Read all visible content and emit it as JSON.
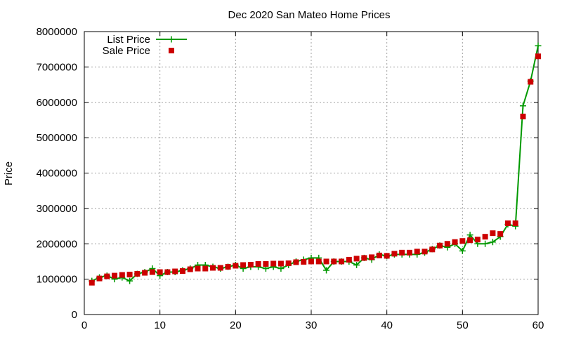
{
  "chart_data": {
    "type": "line",
    "title": "Dec 2020 San Mateo Home Prices",
    "xlabel": "",
    "ylabel": "Price",
    "xlim": [
      0,
      60
    ],
    "ylim": [
      0,
      8000000
    ],
    "x_ticks": [
      0,
      10,
      20,
      30,
      40,
      50,
      60
    ],
    "y_ticks": [
      0,
      1000000,
      2000000,
      3000000,
      4000000,
      5000000,
      6000000,
      7000000,
      8000000
    ],
    "grid": true,
    "legend_position": "top-left",
    "series": [
      {
        "name": "List Price",
        "style": "line+cross",
        "color": "#009900",
        "x": [
          1,
          2,
          3,
          4,
          5,
          6,
          7,
          8,
          9,
          10,
          11,
          12,
          13,
          14,
          15,
          16,
          17,
          18,
          19,
          20,
          21,
          22,
          23,
          24,
          25,
          26,
          27,
          28,
          29,
          30,
          31,
          32,
          33,
          34,
          35,
          36,
          37,
          38,
          39,
          40,
          41,
          42,
          43,
          44,
          45,
          46,
          47,
          48,
          49,
          50,
          51,
          52,
          53,
          54,
          55,
          56,
          57,
          58,
          59,
          60
        ],
        "values": [
          950000,
          1050000,
          1100000,
          1000000,
          1050000,
          950000,
          1150000,
          1200000,
          1300000,
          1100000,
          1200000,
          1200000,
          1250000,
          1300000,
          1400000,
          1400000,
          1350000,
          1300000,
          1350000,
          1400000,
          1300000,
          1350000,
          1350000,
          1300000,
          1350000,
          1300000,
          1400000,
          1500000,
          1550000,
          1600000,
          1600000,
          1250000,
          1500000,
          1500000,
          1500000,
          1400000,
          1600000,
          1550000,
          1700000,
          1650000,
          1700000,
          1700000,
          1700000,
          1700000,
          1750000,
          1850000,
          1950000,
          1900000,
          2000000,
          1800000,
          2250000,
          2000000,
          2000000,
          2050000,
          2200000,
          2550000,
          2500000,
          5900000,
          6600000,
          7600000
        ]
      },
      {
        "name": "Sale Price",
        "style": "square",
        "color": "#cc0000",
        "x": [
          1,
          2,
          3,
          4,
          5,
          6,
          7,
          8,
          9,
          10,
          11,
          12,
          13,
          14,
          15,
          16,
          17,
          18,
          19,
          20,
          21,
          22,
          23,
          24,
          25,
          26,
          27,
          28,
          29,
          30,
          31,
          32,
          33,
          34,
          35,
          36,
          37,
          38,
          39,
          40,
          41,
          42,
          43,
          44,
          45,
          46,
          47,
          48,
          49,
          50,
          51,
          52,
          53,
          54,
          55,
          56,
          57,
          58,
          59,
          60
        ],
        "values": [
          900000,
          1020000,
          1080000,
          1100000,
          1120000,
          1130000,
          1150000,
          1180000,
          1200000,
          1200000,
          1200000,
          1220000,
          1230000,
          1280000,
          1300000,
          1300000,
          1320000,
          1320000,
          1350000,
          1380000,
          1400000,
          1410000,
          1430000,
          1430000,
          1440000,
          1440000,
          1450000,
          1480000,
          1490000,
          1500000,
          1500000,
          1500000,
          1500000,
          1500000,
          1550000,
          1580000,
          1600000,
          1620000,
          1670000,
          1660000,
          1720000,
          1750000,
          1750000,
          1780000,
          1780000,
          1840000,
          1950000,
          2000000,
          2050000,
          2080000,
          2100000,
          2120000,
          2200000,
          2300000,
          2280000,
          2580000,
          2580000,
          5600000,
          6580000,
          7300000
        ]
      }
    ]
  }
}
